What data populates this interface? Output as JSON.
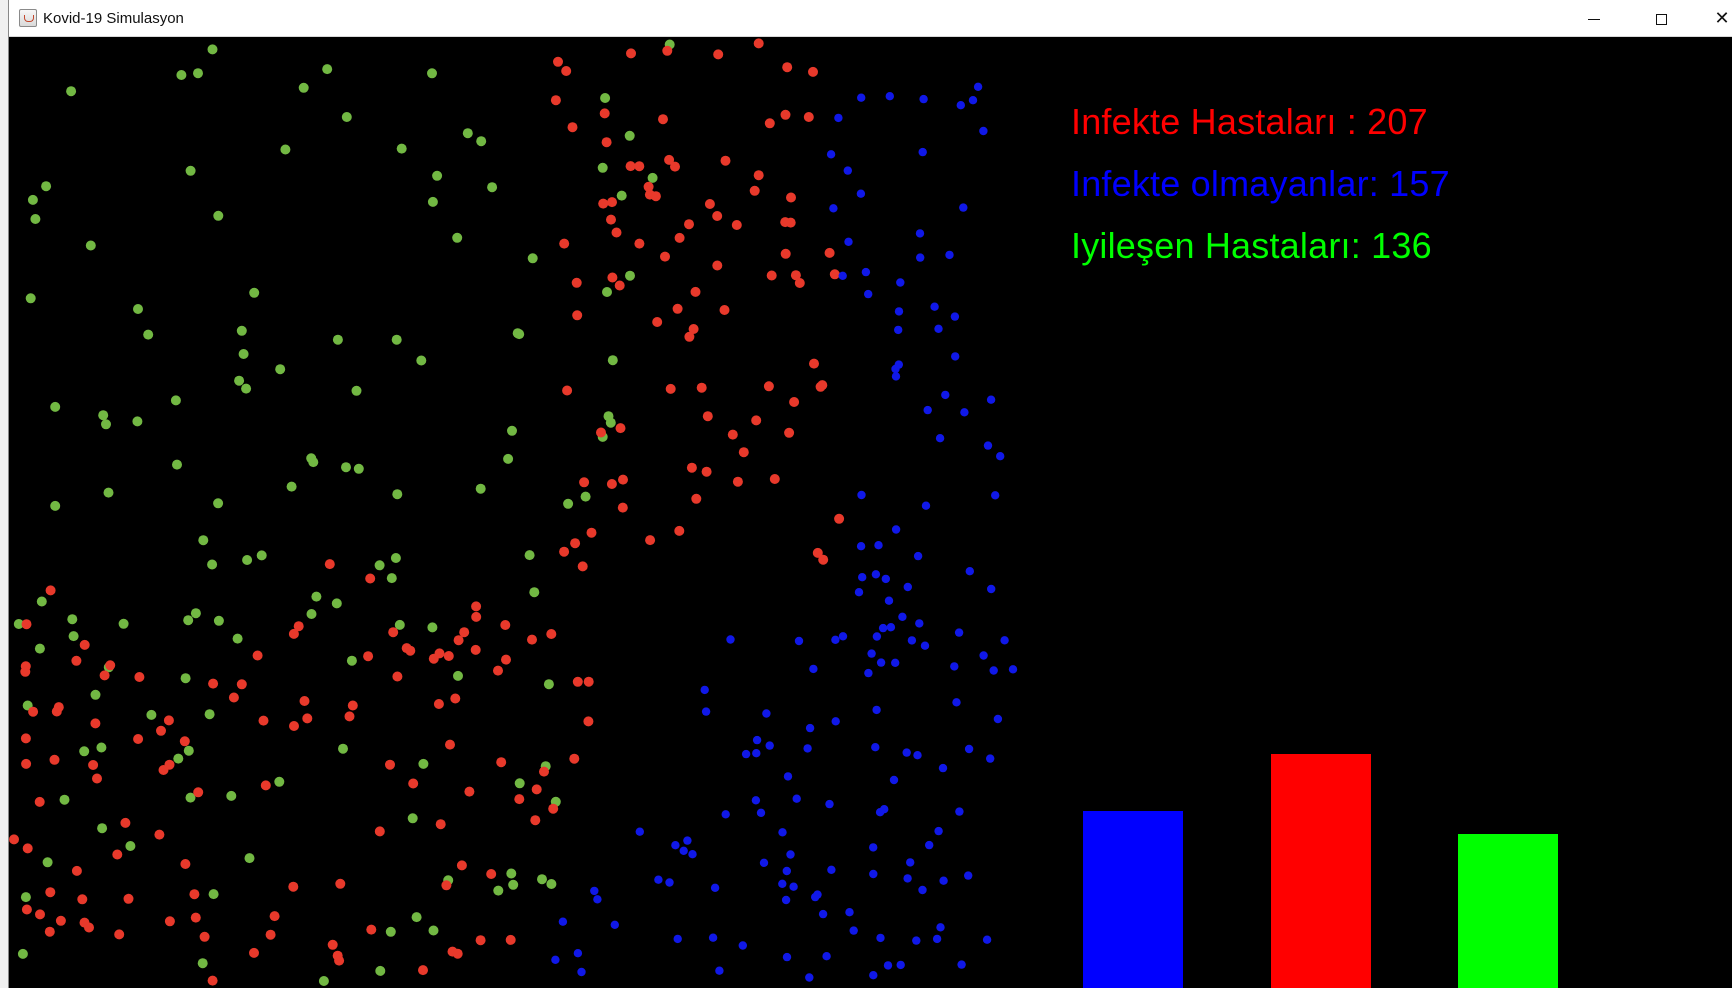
{
  "window": {
    "title": "Kovid-19 Simulasyon",
    "controls": [
      "minimize",
      "maximize",
      "close"
    ]
  },
  "stats": {
    "infected_label": "Infekte Hastaları : 207",
    "healthy_label": "Infekte olmayanlar: 157",
    "recovered_label": "Iyileşen Hastaları: 136",
    "infected_count": 207,
    "healthy_count": 157,
    "recovered_count": 136
  },
  "colors": {
    "infected_text": "#ff0000",
    "healthy_text": "#0000ff",
    "recovered_text": "#00ff00",
    "infected_particle": "#e8392b",
    "healthy_particle": "#1018e8",
    "recovered_particle": "#72b843",
    "background": "#000000"
  },
  "chart_data": {
    "type": "bar",
    "categories": [
      "Infekte olmayanlar",
      "Infekte Hastaları",
      "Iyileşen Hastaları"
    ],
    "values": [
      157,
      207,
      136
    ],
    "colors": [
      "#0000ff",
      "#ff0000",
      "#00ff00"
    ],
    "title": "",
    "xlabel": "",
    "ylabel": ""
  }
}
